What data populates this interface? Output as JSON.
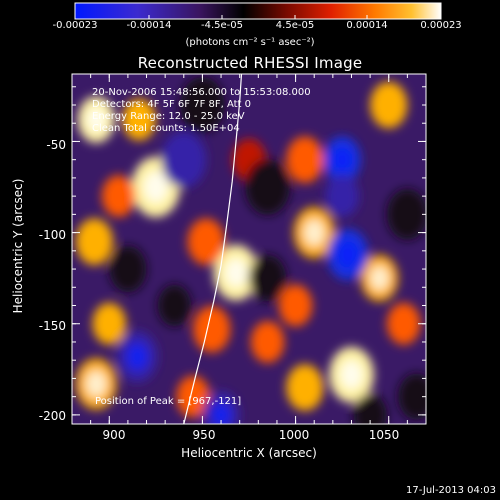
{
  "colorbar": {
    "ticks": [
      "-0.00023",
      "-0.00014",
      "-4.5e-05",
      "4.5e-05",
      "0.00014",
      "0.00023"
    ],
    "unit_label": "(photons cm⁻² s⁻¹ asec⁻²)",
    "range": [
      -0.00023,
      0.00023
    ]
  },
  "plot": {
    "title": "Reconstructed RHESSI Image",
    "info": {
      "time_range": "20-Nov-2006 15:48:56.000 to 15:53:08.000",
      "detectors": "Detectors: 4F 5F 6F 7F 8F, Att 0",
      "energy": "Energy Range: 12.0 - 25.0 keV",
      "clean": "Clean    Total counts: 1.50E+04"
    },
    "peak": "Position of Peak = [967,-121]",
    "xlabel": "Heliocentric X (arcsec)",
    "ylabel": "Heliocentric Y (arcsec)",
    "xticks": [
      "900",
      "950",
      "1000",
      "1050"
    ],
    "yticks": [
      "-50",
      "-100",
      "-150",
      "-200"
    ]
  },
  "timestamp": "17-Jul-2013 04:03",
  "chart_data": {
    "type": "heatmap",
    "title": "Reconstructed RHESSI Image",
    "xlabel": "Heliocentric X (arcsec)",
    "ylabel": "Heliocentric Y (arcsec)",
    "xlim": [
      880,
      1070
    ],
    "ylim": [
      -205,
      -13
    ],
    "xtick_values": [
      900,
      950,
      1000,
      1050
    ],
    "ytick_values": [
      -50,
      -100,
      -150,
      -200
    ],
    "value_range": [
      -0.00023,
      0.00023
    ],
    "colormap": [
      "#0000d8",
      "#3a1fb0",
      "#4a2a8a",
      "#000000",
      "#5a0a00",
      "#b01a00",
      "#ff3a00",
      "#ff8a00",
      "#ffd040",
      "#ffffff"
    ],
    "peak_position": [
      967,
      -121
    ],
    "limb_points": [
      [
        940,
        -205
      ],
      [
        946,
        -180
      ],
      [
        951,
        -160
      ],
      [
        956,
        -138
      ],
      [
        960,
        -118
      ],
      [
        963,
        -96
      ],
      [
        966,
        -72
      ],
      [
        968,
        -50
      ],
      [
        970,
        -28
      ],
      [
        971,
        -13
      ]
    ],
    "blobs": [
      {
        "x": 893,
        "y": -38,
        "v": 1.0,
        "r": 10
      },
      {
        "x": 916,
        "y": -38,
        "v": 0.7,
        "r": 9
      },
      {
        "x": 925,
        "y": -75,
        "v": 1.0,
        "r": 13
      },
      {
        "x": 905,
        "y": -80,
        "v": 0.6,
        "r": 9
      },
      {
        "x": 892,
        "y": -105,
        "v": 0.7,
        "r": 10
      },
      {
        "x": 900,
        "y": -150,
        "v": 0.7,
        "r": 9
      },
      {
        "x": 893,
        "y": -183,
        "v": 0.8,
        "r": 11
      },
      {
        "x": 968,
        "y": -122,
        "v": 1.0,
        "r": 12
      },
      {
        "x": 952,
        "y": -105,
        "v": 0.5,
        "r": 10
      },
      {
        "x": 955,
        "y": -153,
        "v": 0.6,
        "r": 10
      },
      {
        "x": 945,
        "y": -190,
        "v": 0.6,
        "r": 9
      },
      {
        "x": 985,
        "y": -160,
        "v": 0.6,
        "r": 9
      },
      {
        "x": 1010,
        "y": -100,
        "v": 0.8,
        "r": 11
      },
      {
        "x": 1005,
        "y": -60,
        "v": 0.6,
        "r": 10
      },
      {
        "x": 1005,
        "y": -185,
        "v": 0.7,
        "r": 10
      },
      {
        "x": 1030,
        "y": -178,
        "v": 1.0,
        "r": 12
      },
      {
        "x": 1045,
        "y": -125,
        "v": 0.8,
        "r": 10
      },
      {
        "x": 1050,
        "y": -30,
        "v": 0.7,
        "r": 10
      },
      {
        "x": 1058,
        "y": -150,
        "v": 0.6,
        "r": 9
      },
      {
        "x": 1000,
        "y": -140,
        "v": 0.6,
        "r": 9
      },
      {
        "x": 975,
        "y": -60,
        "v": 0.4,
        "r": 9
      },
      {
        "x": 950,
        "y": -30,
        "v": -0.5,
        "r": 12
      },
      {
        "x": 940,
        "y": -60,
        "v": -0.7,
        "r": 12
      },
      {
        "x": 985,
        "y": -75,
        "v": -0.6,
        "r": 12
      },
      {
        "x": 1025,
        "y": -60,
        "v": -1.0,
        "r": 10
      },
      {
        "x": 1028,
        "y": -112,
        "v": -1.0,
        "r": 11
      },
      {
        "x": 1025,
        "y": -80,
        "v": -0.7,
        "r": 9
      },
      {
        "x": 1060,
        "y": -90,
        "v": -0.6,
        "r": 11
      },
      {
        "x": 960,
        "y": -200,
        "v": -0.8,
        "r": 10
      },
      {
        "x": 915,
        "y": -168,
        "v": -0.8,
        "r": 11
      },
      {
        "x": 910,
        "y": -120,
        "v": -0.6,
        "r": 10
      },
      {
        "x": 985,
        "y": -125,
        "v": -0.6,
        "r": 10
      },
      {
        "x": 1040,
        "y": -200,
        "v": -0.6,
        "r": 9
      },
      {
        "x": 935,
        "y": -140,
        "v": -0.5,
        "r": 9
      },
      {
        "x": 1065,
        "y": -190,
        "v": -0.5,
        "r": 10
      }
    ]
  }
}
